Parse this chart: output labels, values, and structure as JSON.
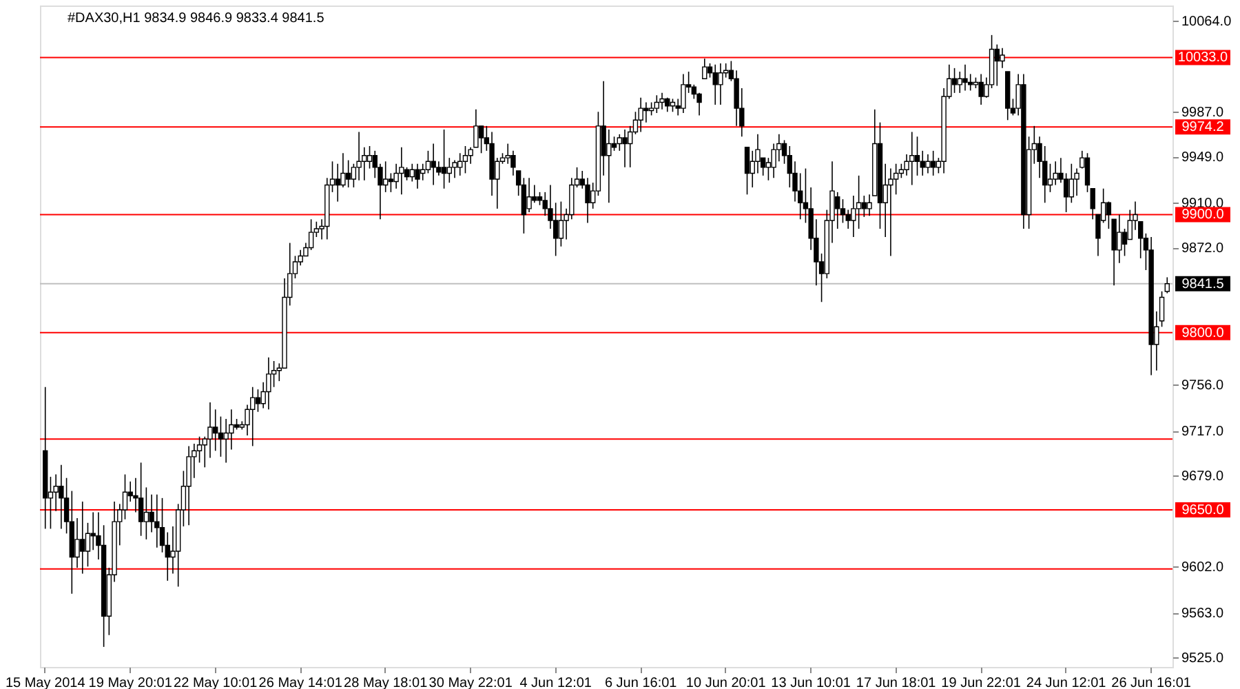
{
  "chart_data": {
    "type": "candlestick",
    "title": "#DAX30,H1  9834.9 9846.9 9833.4 9841.5",
    "color": "#000000",
    "categories": [
      "15 May 2014",
      null,
      null,
      null,
      null,
      null,
      null,
      null,
      null,
      null,
      null,
      null,
      null,
      null,
      null,
      null,
      "19 May 20:01",
      null,
      null,
      null,
      null,
      null,
      null,
      null,
      null,
      null,
      null,
      null,
      null,
      null,
      null,
      null,
      "22 May 10:01",
      null,
      null,
      null,
      null,
      null,
      null,
      null,
      null,
      null,
      null,
      null,
      null,
      null,
      null,
      null,
      "26 May 14:01",
      null,
      null,
      null,
      null,
      null,
      null,
      null,
      null,
      null,
      null,
      null,
      null,
      null,
      null,
      null,
      "28 May 18:01",
      null,
      null,
      null,
      null,
      null,
      null,
      null,
      null,
      null,
      null,
      null,
      null,
      null,
      null,
      null,
      "30 May 22:01",
      null,
      null,
      null,
      null,
      null,
      null,
      null,
      null,
      null,
      null,
      null,
      null,
      null,
      null,
      null,
      "4 Jun 12:01",
      null,
      null,
      null,
      null,
      null,
      null,
      null,
      null,
      null,
      null,
      null,
      null,
      null,
      null,
      null,
      "6 Jun 16:01",
      null,
      null,
      null,
      null,
      null,
      null,
      null,
      null,
      null,
      null,
      null,
      null,
      null,
      null,
      null,
      "10 Jun 20:01",
      null,
      null,
      null,
      null,
      null,
      null,
      null,
      null,
      null,
      null,
      null,
      null,
      null,
      null,
      null,
      "13 Jun 10:01",
      null,
      null,
      null,
      null,
      null,
      null,
      null,
      null,
      null,
      null,
      null,
      null,
      null,
      null,
      null,
      "17 Jun 18:01",
      null,
      null,
      null,
      null,
      null,
      null,
      null,
      null,
      null,
      null,
      null,
      null,
      null,
      null,
      null,
      "19 Jun 22:01",
      null,
      null,
      null,
      null,
      null,
      null,
      null,
      null,
      null,
      null,
      null,
      null,
      null,
      null,
      null,
      "24 Jun 12:01",
      null,
      null,
      null,
      null,
      null,
      null,
      null,
      null,
      null,
      null,
      null,
      null,
      null,
      null,
      null,
      "26 Jun 16:01",
      null,
      null,
      null
    ],
    "ohlc": [
      [
        9700,
        9754,
        9634,
        9660
      ],
      [
        9660,
        9678,
        9634,
        9665
      ],
      [
        9665,
        9680,
        9649,
        9670
      ],
      [
        9670,
        9688,
        9634,
        9660
      ],
      [
        9660,
        9677,
        9630,
        9640
      ],
      [
        9640,
        9666,
        9579,
        9610
      ],
      [
        9610,
        9643,
        9601,
        9625
      ],
      [
        9625,
        9657,
        9596,
        9615
      ],
      [
        9615,
        9639,
        9602,
        9630
      ],
      [
        9630,
        9648,
        9616,
        9628
      ],
      [
        9628,
        9648,
        9608,
        9620
      ],
      [
        9620,
        9637,
        9534,
        9560
      ],
      [
        9560,
        9601,
        9544,
        9595
      ],
      [
        9595,
        9657,
        9589,
        9640
      ],
      [
        9640,
        9655,
        9620,
        9650
      ],
      [
        9650,
        9680,
        9642,
        9665
      ],
      [
        9665,
        9674,
        9657,
        9662
      ],
      [
        9662,
        9677,
        9648,
        9660
      ],
      [
        9660,
        9690,
        9628,
        9640
      ],
      [
        9640,
        9669,
        9625,
        9648
      ],
      [
        9648,
        9663,
        9631,
        9640
      ],
      [
        9640,
        9663,
        9618,
        9635
      ],
      [
        9635,
        9660,
        9614,
        9620
      ],
      [
        9620,
        9631,
        9590,
        9610
      ],
      [
        9610,
        9636,
        9596,
        9615
      ],
      [
        9615,
        9655,
        9585,
        9650
      ],
      [
        9650,
        9683,
        9636,
        9670
      ],
      [
        9670,
        9704,
        9637,
        9695
      ],
      [
        9695,
        9706,
        9677,
        9700
      ],
      [
        9700,
        9712,
        9690,
        9705
      ],
      [
        9705,
        9712,
        9686,
        9710
      ],
      [
        9710,
        9741,
        9694,
        9720
      ],
      [
        9720,
        9735,
        9700,
        9715
      ],
      [
        9715,
        9729,
        9695,
        9710
      ],
      [
        9710,
        9727,
        9690,
        9715
      ],
      [
        9715,
        9735,
        9701,
        9722
      ],
      [
        9722,
        9727,
        9718,
        9720
      ],
      [
        9720,
        9725,
        9718,
        9722
      ],
      [
        9722,
        9739,
        9713,
        9735
      ],
      [
        9735,
        9754,
        9704,
        9745
      ],
      [
        9745,
        9752,
        9733,
        9740
      ],
      [
        9740,
        9758,
        9736,
        9750
      ],
      [
        9750,
        9779,
        9735,
        9765
      ],
      [
        9765,
        9776,
        9754,
        9768
      ],
      [
        9768,
        9774,
        9759,
        9770
      ],
      [
        9770,
        9846,
        9770,
        9830
      ],
      [
        9830,
        9876,
        9823,
        9850
      ],
      [
        9850,
        9865,
        9846,
        9860
      ],
      [
        9860,
        9870,
        9857,
        9865
      ],
      [
        9865,
        9876,
        9865,
        9872
      ],
      [
        9872,
        9896,
        9870,
        9885
      ],
      [
        9885,
        9894,
        9881,
        9888
      ],
      [
        9888,
        9896,
        9879,
        9890
      ],
      [
        9890,
        9931,
        9879,
        9925
      ],
      [
        9925,
        9945,
        9919,
        9930
      ],
      [
        9930,
        9943,
        9911,
        9925
      ],
      [
        9925,
        9952,
        9923,
        9935
      ],
      [
        9935,
        9946,
        9923,
        9930
      ],
      [
        9930,
        9943,
        9923,
        9940
      ],
      [
        9940,
        9970,
        9929,
        9945
      ],
      [
        9945,
        9957,
        9929,
        9950
      ],
      [
        9945,
        9958,
        9939,
        9950
      ],
      [
        9950,
        9954,
        9931,
        9940
      ],
      [
        9940,
        9943,
        9896,
        9925
      ],
      [
        9925,
        9945,
        9919,
        9930
      ],
      [
        9930,
        9935,
        9919,
        9928
      ],
      [
        9928,
        9943,
        9922,
        9935
      ],
      [
        9935,
        9957,
        9917,
        9940
      ],
      [
        9938,
        9940,
        9929,
        9932
      ],
      [
        9932,
        9943,
        9928,
        9938
      ],
      [
        9938,
        9943,
        9922,
        9930
      ],
      [
        9935,
        9943,
        9929,
        9938
      ],
      [
        9938,
        9954,
        9935,
        9945
      ],
      [
        9945,
        9960,
        9925,
        9940
      ],
      [
        9940,
        9945,
        9933,
        9936
      ],
      [
        9940,
        9972,
        9922,
        9935
      ],
      [
        9935,
        9948,
        9927,
        9940
      ],
      [
        9940,
        9946,
        9931,
        9944
      ],
      [
        9940,
        9952,
        9933,
        9945
      ],
      [
        9945,
        9958,
        9935,
        9950
      ],
      [
        9950,
        9957,
        9943,
        9955
      ],
      [
        9957,
        9989,
        9957,
        9975
      ],
      [
        9975,
        9975,
        9952,
        9965
      ],
      [
        9965,
        9975,
        9954,
        9960
      ],
      [
        9960,
        9970,
        9916,
        9930
      ],
      [
        9930,
        9948,
        9905,
        9945
      ],
      [
        9945,
        9952,
        9943,
        9948
      ],
      [
        9948,
        9960,
        9943,
        9950
      ],
      [
        9950,
        9954,
        9933,
        9940
      ],
      [
        9937,
        9937,
        9916,
        9925
      ],
      [
        9925,
        9931,
        9884,
        9900
      ],
      [
        9905,
        9931,
        9902,
        9915
      ],
      [
        9915,
        9925,
        9910,
        9912
      ],
      [
        9915,
        9919,
        9908,
        9912
      ],
      [
        9912,
        9919,
        9899,
        9905
      ],
      [
        9905,
        9925,
        9888,
        9895
      ],
      [
        9895,
        9910,
        9865,
        9880
      ],
      [
        9880,
        9911,
        9873,
        9895
      ],
      [
        9895,
        9905,
        9879,
        9900
      ],
      [
        9900,
        9931,
        9896,
        9925
      ],
      [
        9925,
        9940,
        9923,
        9930
      ],
      [
        9930,
        9937,
        9922,
        9925
      ],
      [
        9925,
        9931,
        9893,
        9910
      ],
      [
        9910,
        9927,
        9905,
        9920
      ],
      [
        9920,
        9987,
        9916,
        9975
      ],
      [
        9975,
        10013,
        9933,
        9950
      ],
      [
        9950,
        9972,
        9910,
        9960
      ],
      [
        9960,
        9966,
        9954,
        9957
      ],
      [
        9960,
        9968,
        9954,
        9965
      ],
      [
        9965,
        9972,
        9940,
        9960
      ],
      [
        9960,
        9975,
        9940,
        9970
      ],
      [
        9970,
        9987,
        9968,
        9980
      ],
      [
        9980,
        9999,
        9970,
        9990
      ],
      [
        9990,
        9995,
        9978,
        9988
      ],
      [
        9988,
        9995,
        9984,
        9990
      ],
      [
        9990,
        10001,
        9986,
        9995
      ],
      [
        9995,
        10003,
        9989,
        9998
      ],
      [
        9998,
        9999,
        9987,
        9992
      ],
      [
        9992,
        9998,
        9987,
        9995
      ],
      [
        9992,
        9998,
        9984,
        9990
      ],
      [
        9990,
        10019,
        9986,
        10010
      ],
      [
        10010,
        10021,
        10003,
        10008
      ],
      [
        10008,
        10010,
        9998,
        10002
      ],
      [
        10002,
        10003,
        9984,
        9995
      ],
      [
        10015,
        10032,
        10015,
        10025
      ],
      [
        10025,
        10028,
        10016,
        10020
      ],
      [
        10020,
        10027,
        9993,
        10010
      ],
      [
        10010,
        10028,
        9993,
        10020
      ],
      [
        10020,
        10028,
        10016,
        10022
      ],
      [
        10022,
        10030,
        10013,
        10015
      ],
      [
        10015,
        10022,
        9975,
        9990
      ],
      [
        9990,
        10007,
        9966,
        9975
      ],
      [
        9957,
        9957,
        9917,
        9935
      ],
      [
        9935,
        9954,
        9923,
        9945
      ],
      [
        9945,
        9968,
        9935,
        9955
      ],
      [
        9948,
        9948,
        9933,
        9940
      ],
      [
        9940,
        9948,
        9929,
        9944
      ],
      [
        9940,
        9960,
        9931,
        9955
      ],
      [
        9955,
        9968,
        9945,
        9960
      ],
      [
        9960,
        9963,
        9943,
        9950
      ],
      [
        9950,
        9958,
        9923,
        9935
      ],
      [
        9935,
        9945,
        9911,
        9920
      ],
      [
        9920,
        9935,
        9896,
        9910
      ],
      [
        9910,
        9939,
        9893,
        9905
      ],
      [
        9905,
        9923,
        9870,
        9880
      ],
      [
        9880,
        9896,
        9840,
        9860
      ],
      [
        9860,
        9867,
        9826,
        9850
      ],
      [
        9850,
        9904,
        9846,
        9895
      ],
      [
        9895,
        9945,
        9876,
        9920
      ],
      [
        9915,
        9919,
        9888,
        9905
      ],
      [
        9905,
        9913,
        9893,
        9900
      ],
      [
        9900,
        9904,
        9888,
        9895
      ],
      [
        9895,
        9916,
        9881,
        9905
      ],
      [
        9905,
        9933,
        9888,
        9910
      ],
      [
        9910,
        9916,
        9898,
        9905
      ],
      [
        9905,
        9917,
        9899,
        9910
      ],
      [
        9916,
        9989,
        9916,
        9960
      ],
      [
        9960,
        9978,
        9888,
        9910
      ],
      [
        9910,
        9943,
        9881,
        9925
      ],
      [
        9925,
        9939,
        9865,
        9930
      ],
      [
        9930,
        9943,
        9917,
        9935
      ],
      [
        9935,
        9943,
        9931,
        9938
      ],
      [
        9938,
        9951,
        9933,
        9945
      ],
      [
        9945,
        9970,
        9925,
        9950
      ],
      [
        9950,
        9966,
        9933,
        9945
      ],
      [
        9945,
        9954,
        9933,
        9940
      ],
      [
        9940,
        9951,
        9935,
        9945
      ],
      [
        9945,
        9954,
        9933,
        9940
      ],
      [
        9940,
        9948,
        9935,
        9945
      ],
      [
        9945,
        10007,
        9935,
        10000
      ],
      [
        10000,
        10027,
        9998,
        10015
      ],
      [
        10015,
        10024,
        10003,
        10010
      ],
      [
        10010,
        10021,
        10003,
        10015
      ],
      [
        10015,
        10027,
        10005,
        10012
      ],
      [
        10012,
        10019,
        10005,
        10010
      ],
      [
        10010,
        10016,
        10007,
        10012
      ],
      [
        10012,
        10019,
        9993,
        10000
      ],
      [
        10000,
        10016,
        9999,
        10010
      ],
      [
        10010,
        10052,
        10007,
        10040
      ],
      [
        10040,
        10044,
        10009,
        10030
      ],
      [
        10030,
        10041,
        10024,
        10035
      ],
      [
        10021,
        10021,
        9980,
        9990
      ],
      [
        9990,
        9998,
        9984,
        9986
      ],
      [
        9990,
        10019,
        9984,
        10010
      ],
      [
        10010,
        10019,
        9888,
        9900
      ],
      [
        9900,
        9966,
        9888,
        9955
      ],
      [
        9955,
        9975,
        9943,
        9960
      ],
      [
        9960,
        9966,
        9931,
        9945
      ],
      [
        9945,
        9958,
        9910,
        9925
      ],
      [
        9925,
        9943,
        9919,
        9930
      ],
      [
        9930,
        9945,
        9925,
        9935
      ],
      [
        9935,
        9948,
        9927,
        9930
      ],
      [
        9930,
        9935,
        9902,
        9915
      ],
      [
        9915,
        9943,
        9910,
        9930
      ],
      [
        9930,
        9939,
        9916,
        9935
      ],
      [
        9940,
        9954,
        9939,
        9948
      ],
      [
        9948,
        9952,
        9919,
        9925
      ],
      [
        9922,
        9922,
        9896,
        9905
      ],
      [
        9900,
        9900,
        9865,
        9880
      ],
      [
        9895,
        9922,
        9893,
        9910
      ],
      [
        9910,
        9911,
        9888,
        9900
      ],
      [
        9896,
        9896,
        9840,
        9870
      ],
      [
        9870,
        9900,
        9859,
        9885
      ],
      [
        9885,
        9888,
        9865,
        9875
      ],
      [
        9879,
        9904,
        9879,
        9895
      ],
      [
        9895,
        9911,
        9887,
        9900
      ],
      [
        9894,
        9894,
        9863,
        9880
      ],
      [
        9880,
        9884,
        9853,
        9870
      ],
      [
        9870,
        9881,
        9764,
        9790
      ],
      [
        9790,
        9818,
        9768,
        9805
      ],
      [
        9810,
        9835,
        9805,
        9830
      ],
      [
        9834.9,
        9846.9,
        9833.4,
        9841.5
      ]
    ],
    "ylim": [
      9517,
      10077
    ],
    "yticks": [
      {
        "value": 9525,
        "label": "9525.0"
      },
      {
        "value": 9563,
        "label": "9563.0"
      },
      {
        "value": 9602,
        "label": "9602.0"
      },
      {
        "value": 9679,
        "label": "9679.0"
      },
      {
        "value": 9717,
        "label": "9717.0"
      },
      {
        "value": 9756,
        "label": "9756.0"
      },
      {
        "value": 9872,
        "label": "9872.0"
      },
      {
        "value": 9910,
        "label": "9910.0"
      },
      {
        "value": 9949,
        "label": "9949.0"
      },
      {
        "value": 9987,
        "label": "9987.0"
      },
      {
        "value": 10064,
        "label": "10064.0"
      }
    ],
    "ref_lines": [
      {
        "axis": "y",
        "value": 10033,
        "label": "10033.0",
        "color": "#ff0000"
      },
      {
        "axis": "y",
        "value": 9974.2,
        "label": "9974.2",
        "color": "#ff0000"
      },
      {
        "axis": "y",
        "value": 9900,
        "label": "9900.0",
        "color": "#ff0000"
      },
      {
        "axis": "y",
        "value": 9841.5,
        "label": "9841.5",
        "color": "#c0c0c0"
      },
      {
        "axis": "y",
        "value": 9800,
        "label": "9800.0",
        "color": "#ff0000"
      },
      {
        "axis": "y",
        "value": 9710,
        "label": null,
        "color": "#ff0000"
      },
      {
        "axis": "y",
        "value": 9650,
        "label": "9650.0",
        "color": "#ff0000"
      },
      {
        "axis": "y",
        "value": 9600,
        "label": null,
        "color": "#ff0000"
      }
    ],
    "grid": false
  }
}
